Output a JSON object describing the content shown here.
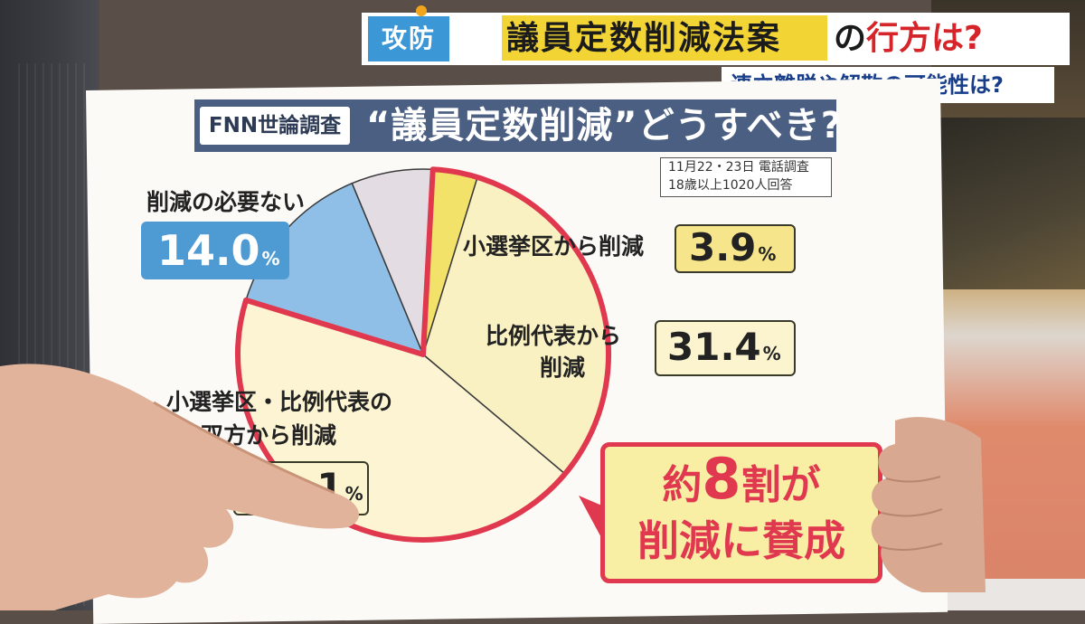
{
  "banner": {
    "tag": "攻防",
    "title": "議員定数削減法案",
    "title_suffix_plain": "の",
    "title_suffix_red": "行方は?",
    "subtitle": "連立離脱や解散の可能性は?"
  },
  "chart_data": {
    "type": "pie",
    "header_tag": "FNN世論調査",
    "title": "“議員定数削減”どうすべき?",
    "survey_note": [
      "11月22・23日 電話調査",
      "18歳以上1020人回答"
    ],
    "slices": [
      {
        "name": "小選挙区から削減",
        "value": 3.9,
        "color": "#f3e26a"
      },
      {
        "name": "比例代表から削減",
        "value": 31.4,
        "color": "#faf1c2"
      },
      {
        "name": "小選挙区・比例代表の双方から削減",
        "value": null,
        "color": "#fcf4d2"
      },
      {
        "name": "削減の必要ない",
        "value": 14.0,
        "color": "#8fbfe6"
      },
      {
        "name": "",
        "value": null,
        "color": "#e4dce3"
      }
    ],
    "labels": {
      "single": "小選挙区から削減",
      "single_value": "3.9",
      "prop_line1": "比例代表から",
      "prop_line2": "削減",
      "prop_value": "31.4",
      "both_line1": "小選挙区・比例代表の",
      "both_line2": "双方から削減",
      "both_value_visible": "1",
      "none": "削減の必要ない",
      "none_value": "14.0",
      "percent": "%"
    },
    "callout": {
      "line1_pre": "約",
      "line1_num": "8",
      "line1_post": "割が",
      "line2": "削減に賛成"
    },
    "highlight_color": "#e0384e"
  }
}
